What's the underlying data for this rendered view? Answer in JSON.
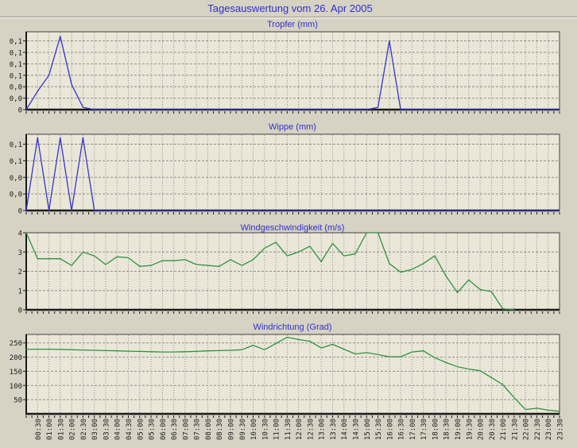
{
  "page_title": "Tagesauswertung vom 26. Apr 2005",
  "colors": {
    "page_bg": "#d6d2c4",
    "plot_bg": "#eae7d8",
    "title_blue": "#3030cc",
    "line_blue": "#3434cd",
    "line_green": "#2e9140",
    "grid": "#8f8f8f",
    "axis": "#1a1a1a",
    "border": "#404040",
    "groove_dark": "#9a9689",
    "groove_light": "#ffffff"
  },
  "x_axis": {
    "start": "00:00",
    "step_minutes": 30,
    "labels": [
      "00:30",
      "01:00",
      "01:30",
      "02:00",
      "02:30",
      "03:00",
      "03:30",
      "04:00",
      "04:30",
      "05:00",
      "05:30",
      "06:00",
      "06:30",
      "07:00",
      "07:30",
      "08:00",
      "08:30",
      "09:00",
      "09:30",
      "10:00",
      "10:30",
      "11:00",
      "11:30",
      "12:00",
      "12:30",
      "13:00",
      "13:30",
      "14:00",
      "14:30",
      "15:00",
      "15:30",
      "16:00",
      "16:30",
      "17:00",
      "17:30",
      "18:00",
      "18:30",
      "19:00",
      "19:30",
      "20:00",
      "20:30",
      "21:00",
      "21:30",
      "22:00",
      "22:30",
      "23:00",
      "23:30"
    ]
  },
  "chart_data": [
    {
      "type": "line",
      "title": "Tropfer (mm)",
      "color": "#3434cd",
      "ylim": [
        0,
        0.17
      ],
      "yticks": [
        [
          0.15,
          "0,1"
        ],
        [
          0.125,
          "0,1"
        ],
        [
          0.1,
          "0,1"
        ],
        [
          0.075,
          "0,1"
        ],
        [
          0.05,
          "0,0"
        ],
        [
          0.025,
          "0,0"
        ],
        [
          0,
          "0"
        ]
      ],
      "x_start": "00:00",
      "x_step_minutes": 30,
      "values": [
        0,
        0.04,
        0.075,
        0.16,
        0.055,
        0.005,
        0,
        0,
        0,
        0,
        0,
        0,
        0,
        0,
        0,
        0,
        0,
        0,
        0,
        0,
        0,
        0,
        0,
        0,
        0,
        0,
        0,
        0,
        0,
        0,
        0,
        0.005,
        0.15,
        0,
        0,
        0,
        0,
        0,
        0,
        0,
        0,
        0,
        0,
        0,
        0,
        0,
        0,
        0
      ]
    },
    {
      "type": "line",
      "title": "Wippe (mm)",
      "color": "#3434cd",
      "ylim": [
        0,
        0.115
      ],
      "yticks": [
        [
          0.1,
          "0,1"
        ],
        [
          0.075,
          "0,1"
        ],
        [
          0.05,
          "0,0"
        ],
        [
          0.025,
          "0,0"
        ],
        [
          0,
          "0"
        ]
      ],
      "x_start": "00:00",
      "x_step_minutes": 30,
      "values": [
        0,
        0.11,
        0,
        0.11,
        0,
        0.11,
        0,
        0,
        0,
        0,
        0,
        0,
        0,
        0,
        0,
        0,
        0,
        0,
        0,
        0,
        0,
        0,
        0,
        0,
        0,
        0,
        0,
        0,
        0,
        0,
        0,
        0,
        0,
        0,
        0,
        0,
        0,
        0,
        0,
        0,
        0,
        0,
        0,
        0,
        0,
        0,
        0,
        0
      ]
    },
    {
      "type": "line",
      "title": "Windgeschwindigkeit (m/s)",
      "color": "#2e9140",
      "ylim": [
        0,
        4
      ],
      "yticks": [
        [
          4,
          "4"
        ],
        [
          3,
          "3"
        ],
        [
          2,
          "2"
        ],
        [
          1,
          "1"
        ],
        [
          0,
          "0"
        ]
      ],
      "x_start": "00:00",
      "x_step_minutes": 30,
      "values": [
        4.0,
        2.65,
        2.65,
        2.65,
        2.3,
        3.0,
        2.8,
        2.35,
        2.75,
        2.7,
        2.25,
        2.3,
        2.55,
        2.55,
        2.6,
        2.35,
        2.3,
        2.25,
        2.6,
        2.3,
        2.6,
        3.2,
        3.5,
        2.8,
        3.0,
        3.3,
        2.5,
        3.45,
        2.8,
        2.9,
        4.35,
        4.45,
        2.4,
        1.95,
        2.1,
        2.4,
        2.8,
        1.75,
        0.9,
        1.55,
        1.05,
        0.95,
        0.05,
        0,
        null,
        null,
        null,
        null
      ]
    },
    {
      "type": "line",
      "title": "Windrichtung (Grad)",
      "color": "#2e9140",
      "ylim": [
        0,
        280
      ],
      "yticks": [
        [
          250,
          "250"
        ],
        [
          200,
          "200"
        ],
        [
          150,
          "150"
        ],
        [
          100,
          "100"
        ],
        [
          50,
          "50"
        ]
      ],
      "x_start": "00:00",
      "x_step_minutes": 30,
      "values": [
        228,
        228,
        228,
        227,
        226,
        225,
        224,
        223,
        222,
        221,
        220,
        219,
        218,
        218,
        219,
        220,
        222,
        223,
        224,
        226,
        242,
        226,
        248,
        270,
        262,
        256,
        232,
        245,
        228,
        211,
        216,
        209,
        201,
        201,
        218,
        222,
        198,
        181,
        166,
        158,
        152,
        128,
        103,
        57,
        15,
        20,
        13,
        9
      ]
    }
  ]
}
